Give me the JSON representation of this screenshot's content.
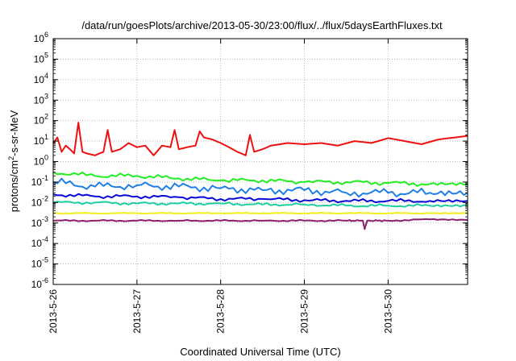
{
  "chart_data": {
    "type": "line",
    "title": "/data/run/goesPlots/archive/2013-05-30/23:00/flux/../flux/5daysEarthFluxes.txt",
    "xlabel": "Coordinated Universal Time (UTC)",
    "ylabel_parts": {
      "pre": "protons/cm",
      "sup": "2",
      "post": "-s-sr-MeV"
    },
    "yscale": "log",
    "ylim": [
      1e-06,
      1000000.0
    ],
    "xlim": [
      0,
      4.95
    ],
    "grid": true,
    "x_tick_labels": [
      "2013-5-26",
      "2013-5-27",
      "2013-5-28",
      "2013-5-29",
      "2013-5-30"
    ],
    "x_tick_values": [
      0,
      1,
      2,
      3,
      4
    ],
    "y_tick_exponents": [
      -6,
      -5,
      -4,
      -3,
      -2,
      -1,
      0,
      1,
      2,
      3,
      4,
      5,
      6
    ],
    "series": [
      {
        "color": "#ee1111",
        "x": [
          0.0,
          0.05,
          0.1,
          0.15,
          0.2,
          0.25,
          0.3,
          0.35,
          0.4,
          0.5,
          0.6,
          0.65,
          0.7,
          0.8,
          0.9,
          1.0,
          1.1,
          1.2,
          1.3,
          1.4,
          1.45,
          1.5,
          1.6,
          1.7,
          1.75,
          1.8,
          1.9,
          2.0,
          2.1,
          2.2,
          2.3,
          2.35,
          2.4,
          2.5,
          2.6,
          2.8,
          3.0,
          3.2,
          3.4,
          3.6,
          3.8,
          4.0,
          4.2,
          4.4,
          4.6,
          4.8,
          4.95
        ],
        "values": [
          8,
          15,
          3,
          6,
          4,
          2.5,
          80,
          3,
          2.5,
          2,
          3,
          35,
          3,
          4,
          8,
          5,
          6,
          2,
          6,
          5,
          35,
          4,
          5,
          6,
          30,
          15,
          12,
          8,
          5,
          3,
          2,
          20,
          3,
          4,
          6,
          8,
          7,
          8,
          6,
          10,
          8,
          14,
          10,
          7,
          12,
          15,
          18
        ]
      },
      {
        "color": "#22ee22",
        "x": [
          0.0,
          0.5,
          1.0,
          1.5,
          2.0,
          2.5,
          3.0,
          3.5,
          4.0,
          4.5,
          4.95
        ],
        "values": [
          0.3,
          0.2,
          0.2,
          0.15,
          0.12,
          0.12,
          0.1,
          0.1,
          0.09,
          0.08,
          0.08
        ]
      },
      {
        "color": "#1e7fe6",
        "x": [
          0.0,
          0.5,
          1.0,
          1.5,
          2.0,
          2.5,
          3.0,
          3.5,
          4.0,
          4.5,
          4.95
        ],
        "values": [
          0.1,
          0.06,
          0.07,
          0.06,
          0.05,
          0.04,
          0.04,
          0.03,
          0.03,
          0.03,
          0.03
        ]
      },
      {
        "color": "#0a0ad8",
        "x": [
          0.0,
          0.5,
          1.0,
          1.5,
          2.0,
          2.5,
          3.0,
          3.5,
          4.0,
          4.5,
          4.95
        ],
        "values": [
          0.025,
          0.02,
          0.02,
          0.018,
          0.015,
          0.015,
          0.013,
          0.012,
          0.012,
          0.012,
          0.012
        ]
      },
      {
        "color": "#1fcfa0",
        "x": [
          0.0,
          0.5,
          1.0,
          1.5,
          2.0,
          2.5,
          3.0,
          3.5,
          4.0,
          4.5,
          4.95
        ],
        "values": [
          0.01,
          0.01,
          0.009,
          0.009,
          0.009,
          0.008,
          0.008,
          0.007,
          0.007,
          0.007,
          0.007
        ]
      },
      {
        "color": "#f2ee1e",
        "x": [
          0.0,
          0.5,
          1.0,
          1.5,
          2.0,
          2.5,
          3.0,
          3.5,
          4.0,
          4.5,
          4.95
        ],
        "values": [
          0.003,
          0.003,
          0.003,
          0.003,
          0.003,
          0.003,
          0.003,
          0.003,
          0.003,
          0.003,
          0.003
        ]
      },
      {
        "color": "#8a1f6e",
        "x": [
          0.0,
          0.5,
          1.0,
          1.5,
          2.0,
          2.5,
          3.0,
          3.5,
          3.7,
          3.72,
          3.75,
          4.0,
          4.5,
          4.95
        ],
        "values": [
          0.0013,
          0.0013,
          0.0013,
          0.0013,
          0.0013,
          0.0013,
          0.0013,
          0.0013,
          0.0013,
          0.0005,
          0.0013,
          0.0013,
          0.0015,
          0.0014
        ]
      }
    ]
  }
}
